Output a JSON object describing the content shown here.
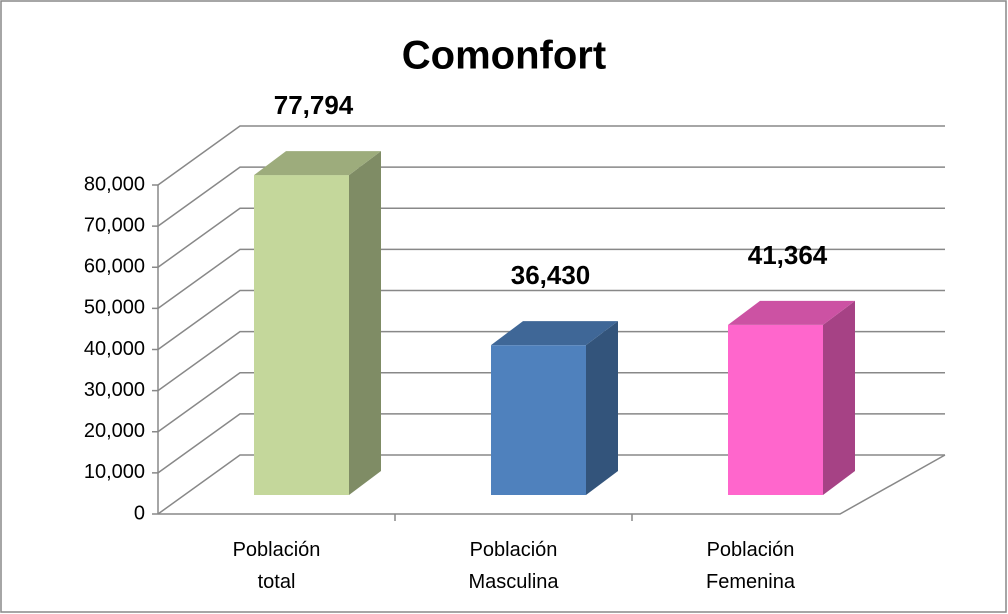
{
  "chart_data": {
    "type": "bar3d",
    "title": "Comonfort",
    "categories": [
      "Población total",
      "Población Masculina",
      "Población Femenina"
    ],
    "values": [
      77794,
      36430,
      41364
    ],
    "value_labels": [
      "77,794",
      "36,430",
      "41,364"
    ],
    "colors": [
      "#c4d79b",
      "#4f81bd",
      "#ff66cc"
    ],
    "ylim": [
      0,
      80000
    ],
    "yticks": [
      0,
      {
        "value": 10000,
        "label": "10,000"
      },
      {
        "value": 20000,
        "label": "20,000"
      },
      {
        "value": 30000,
        "label": "30,000"
      },
      {
        "value": 40000,
        "label": "40,000"
      },
      {
        "value": 50000,
        "label": "50,000"
      },
      {
        "value": 60000,
        "label": "60,000"
      },
      {
        "value": 70000,
        "label": "70,000"
      },
      {
        "value": 80000,
        "label": "80,000"
      }
    ],
    "grid": true
  }
}
